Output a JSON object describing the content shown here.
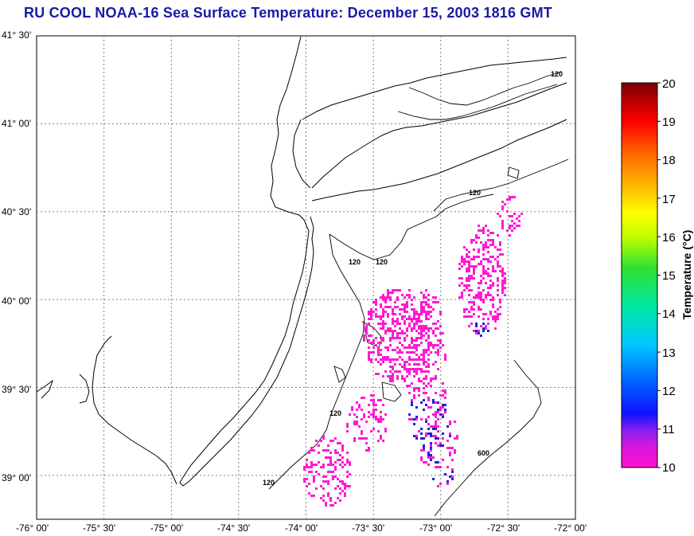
{
  "title": "RU COOL  NOAA-16  Sea Surface Temperature:  December 15, 2003 1816 GMT",
  "map": {
    "lat_labels": [
      "41° 30'",
      "41° 00'",
      "40° 30'",
      "40° 00'",
      "39° 30'",
      "39° 00'"
    ],
    "lon_labels": [
      "-76° 00'",
      "-75° 30'",
      "-75° 00'",
      "-74° 30'",
      "-74° 00'",
      "-73° 30'",
      "-73° 00'",
      "-72° 30'",
      "-72° 00'"
    ],
    "lat_range": [
      38.75,
      41.5
    ],
    "lon_range": [
      -76.0,
      -72.0
    ],
    "grid": true,
    "contour_labels": [
      "120",
      "120",
      "120",
      "120",
      "120",
      "120",
      "600"
    ],
    "colors": {
      "coast": "#000000",
      "grid": "#808080",
      "frame": "#000000"
    }
  },
  "colorbar": {
    "title": "Temperature (°C)",
    "min": 10,
    "max": 20,
    "ticks": [
      "20",
      "19",
      "18",
      "17",
      "16",
      "15",
      "14",
      "13",
      "12",
      "11",
      "10"
    ],
    "stops": [
      "#ff10d0",
      "#a020f0",
      "#0000ff",
      "#0060ff",
      "#00c0ff",
      "#00e8c0",
      "#00e040",
      "#a0ff00",
      "#ffff00",
      "#ffc000",
      "#ff7000",
      "#ff0000",
      "#c00000",
      "#800000"
    ]
  },
  "sst_pixels": {
    "range_c": [
      10,
      11.5
    ],
    "dominant_color": "#ff1ad2",
    "cold_color": "#2020e0"
  }
}
